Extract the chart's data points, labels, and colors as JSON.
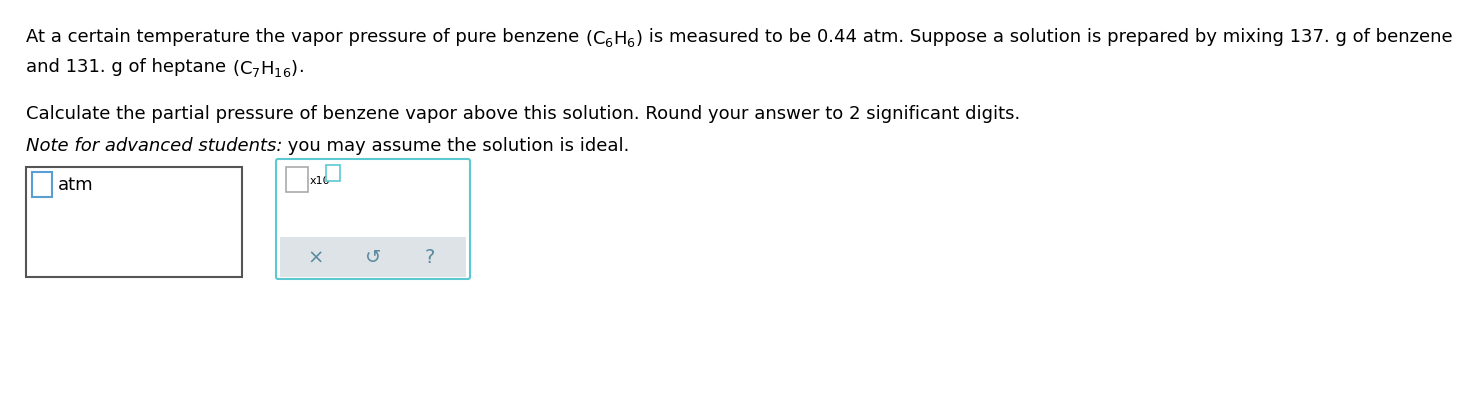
{
  "bg_color": "#ffffff",
  "text_color": "#000000",
  "teal_color": "#5a9fd4",
  "teal_border": "#5bc8d2",
  "gray_color": "#dde3e6",
  "dark_border": "#555555",
  "font_size_main": 13.0,
  "line1a": "At a certain temperature the vapor pressure of pure benzene ",
  "line1b": " is measured to be 0.44 atm. Suppose a solution is prepared by mixing 137. g of benzene",
  "line2a": "and 131. g of heptane ",
  "line2b": ".",
  "line3": "Calculate the partial pressure of benzene vapor above this solution. Round your answer to 2 significant digits.",
  "line4_italic": "Note for advanced students:",
  "line4_normal": " you may assume the solution is ideal.",
  "atm_text": "atm",
  "x10_text": "x10",
  "sym_x": "×",
  "sym_undo": "↺",
  "sym_q": "?"
}
